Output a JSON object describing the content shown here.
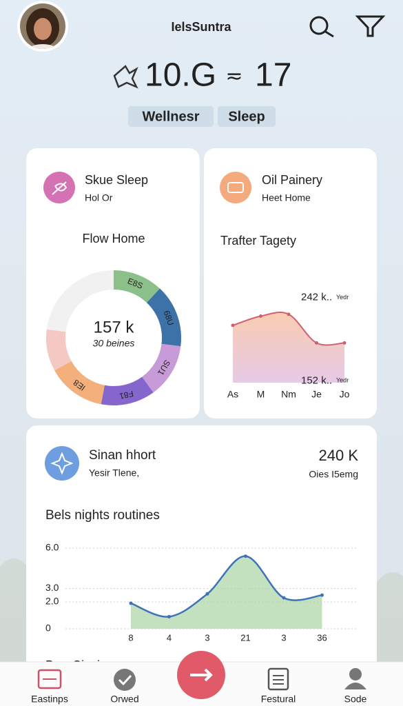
{
  "header": {
    "title": "IelsSuntra",
    "stat_left": "10.G",
    "stat_separator": "≂",
    "stat_right": "17",
    "tabs": [
      "Wellnesr",
      "Sleep"
    ]
  },
  "cards": [
    {
      "title": "Skue Sleep",
      "subtitle": "Hol Or",
      "chart_title": "Flow Home",
      "center_value": "157 k",
      "center_label": "30 beines",
      "chart": {
        "type": "donut",
        "categories": [
          "E8S",
          "68U",
          "SU1",
          "F81",
          "IE8",
          null,
          null
        ],
        "values": [
          12,
          15,
          13,
          13,
          14,
          10,
          23
        ],
        "colors": [
          "#8cc08a",
          "#3d72a8",
          "#c79ad8",
          "#8466cc",
          "#f3b07c",
          "#f4c9c4",
          "#f1f1f1"
        ]
      }
    },
    {
      "title": "Oil Painery",
      "subtitle": "Heet Home",
      "chart_title": "Trafter Tagety",
      "chart": {
        "type": "area",
        "categories": [
          "As",
          "M",
          "Nm",
          "Je",
          "Jo"
        ],
        "values": [
          212,
          222,
          224,
          193,
          193
        ],
        "ylim": [
          150,
          250
        ],
        "color": "#d06070",
        "annotations": [
          {
            "text": "242 k..",
            "unit": "Yedr",
            "value": 242
          },
          {
            "text": "152 k..",
            "unit": "Yedr",
            "value": 152
          }
        ]
      }
    },
    {
      "title": "Sinan hhort",
      "subtitle": "Yesir Tlene,",
      "stat": "240 K",
      "stat_label": "Oies I5emg",
      "chart_title": "Bels nights routines",
      "chart": {
        "type": "line",
        "categories": [
          "8",
          "4",
          "3",
          "21",
          "3",
          "36"
        ],
        "values": [
          1.9,
          0.9,
          2.6,
          5.4,
          2.3,
          2.5
        ],
        "ylim": [
          0,
          6
        ],
        "yticks": [
          {
            "value": 6,
            "label": "6.0"
          },
          {
            "value": 3,
            "label": "3.0"
          },
          {
            "value": 2,
            "label": "2.0"
          },
          0
        ],
        "grid": true,
        "color": "#3f73b8",
        "fill": "#a9d4a2"
      }
    }
  ],
  "section_peek": "Bwv Ciavice",
  "nav": [
    "Eastinps",
    "Orwed",
    "Festural",
    "Sode"
  ]
}
